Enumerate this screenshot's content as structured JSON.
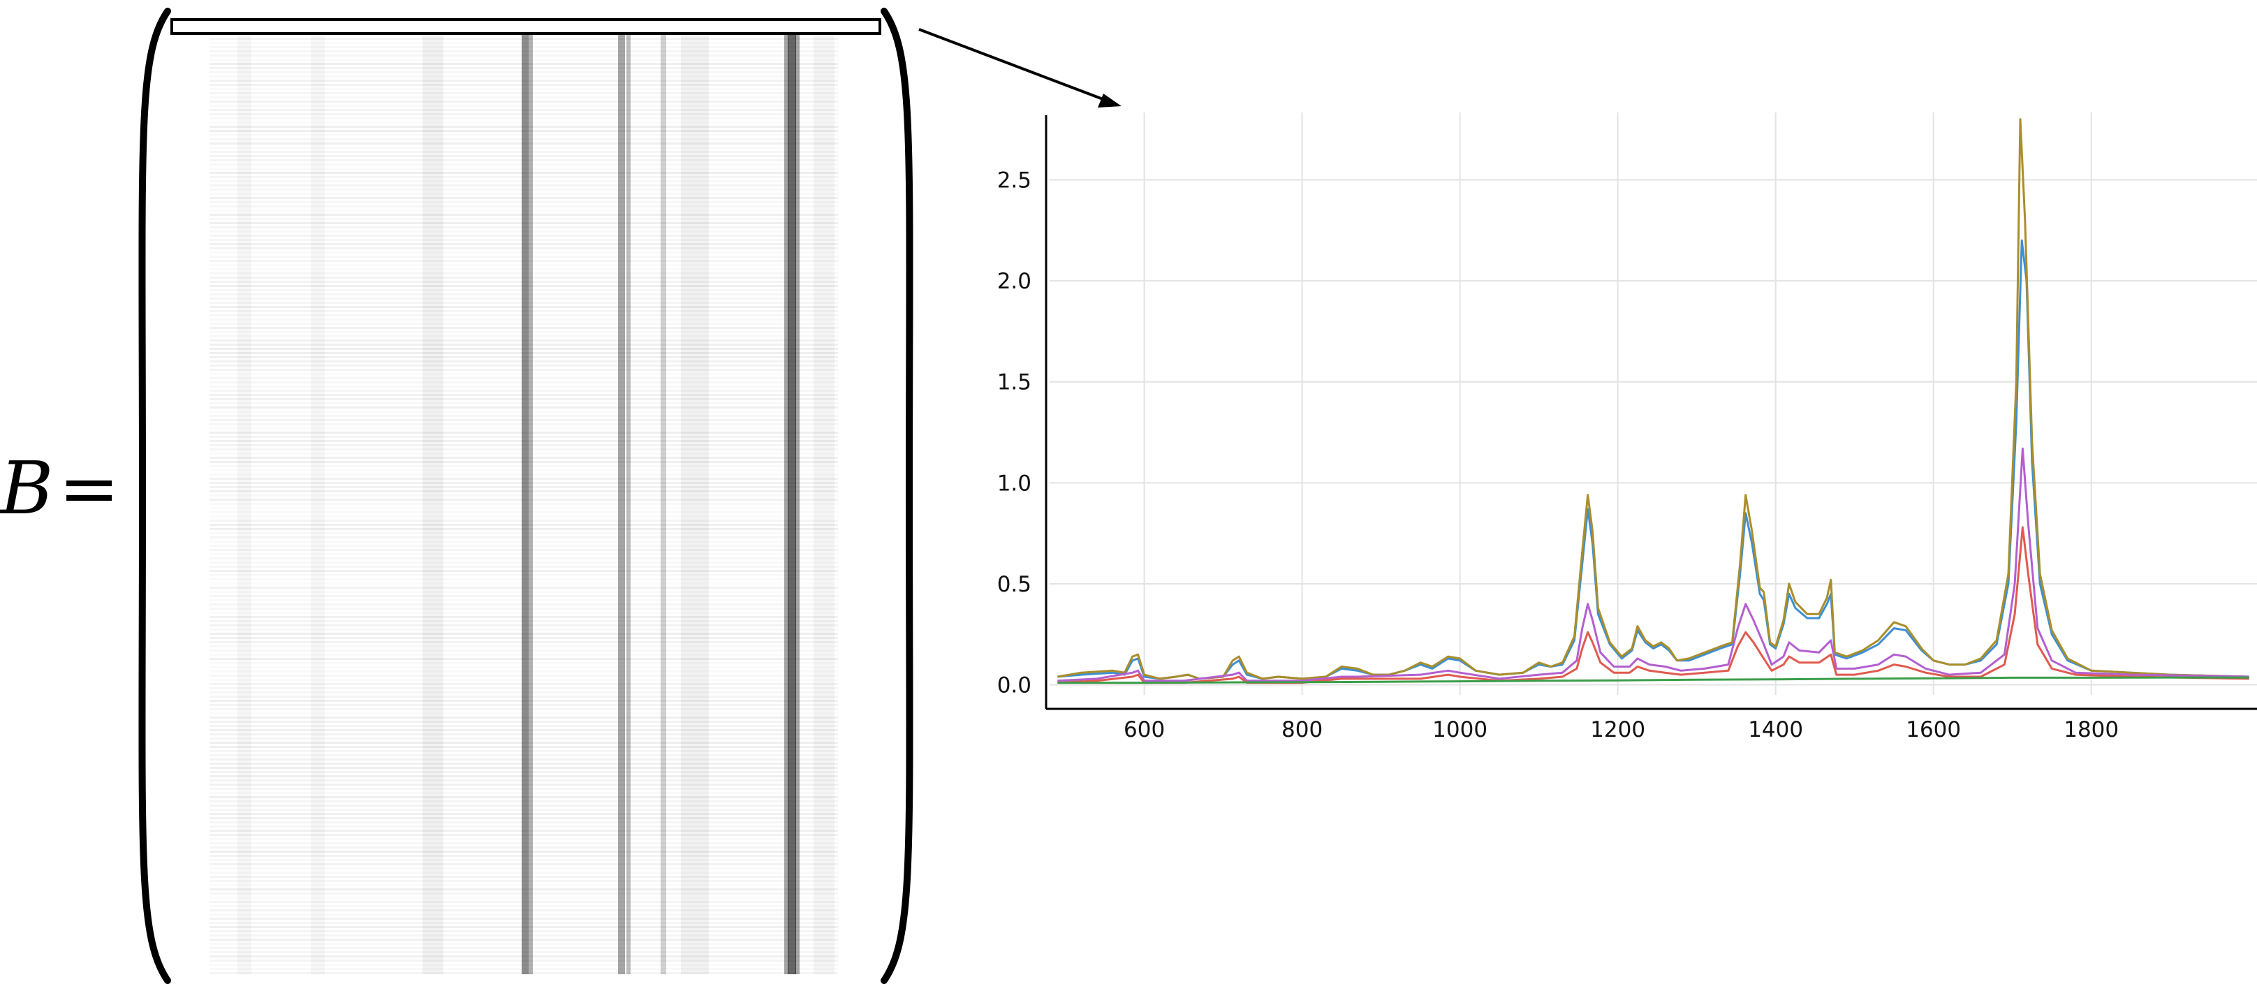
{
  "equation": {
    "symbol": "B",
    "equals": "="
  },
  "arrow": {
    "name": "zoom-arrow"
  },
  "chart_data": {
    "type": "line",
    "title": "",
    "xlabel": "",
    "ylabel": "",
    "xlim": [
      480,
      2010
    ],
    "ylim": [
      -0.05,
      2.82
    ],
    "grid": true,
    "legend": "none",
    "xticks": [
      600,
      800,
      1000,
      1200,
      1400,
      1600,
      1800
    ],
    "yticks": [
      0.0,
      0.5,
      1.0,
      1.5,
      2.0,
      2.5
    ],
    "xtick_labels": [
      "600",
      "800",
      "1000",
      "1200",
      "1400",
      "1600",
      "1800"
    ],
    "ytick_labels": [
      "0.0",
      "0.5",
      "1.0",
      "1.5",
      "2.0",
      "2.5"
    ],
    "series": [
      {
        "color": "#3d8fd4",
        "points": [
          [
            490,
            0.04
          ],
          [
            520,
            0.05
          ],
          [
            560,
            0.06
          ],
          [
            575,
            0.05
          ],
          [
            585,
            0.12
          ],
          [
            592,
            0.13
          ],
          [
            600,
            0.04
          ],
          [
            620,
            0.03
          ],
          [
            640,
            0.04
          ],
          [
            655,
            0.05
          ],
          [
            670,
            0.03
          ],
          [
            700,
            0.04
          ],
          [
            712,
            0.1
          ],
          [
            720,
            0.12
          ],
          [
            730,
            0.05
          ],
          [
            750,
            0.03
          ],
          [
            770,
            0.04
          ],
          [
            800,
            0.03
          ],
          [
            830,
            0.04
          ],
          [
            850,
            0.08
          ],
          [
            870,
            0.07
          ],
          [
            890,
            0.05
          ],
          [
            910,
            0.05
          ],
          [
            930,
            0.07
          ],
          [
            950,
            0.1
          ],
          [
            965,
            0.08
          ],
          [
            985,
            0.13
          ],
          [
            1000,
            0.12
          ],
          [
            1020,
            0.07
          ],
          [
            1050,
            0.05
          ],
          [
            1080,
            0.06
          ],
          [
            1100,
            0.1
          ],
          [
            1115,
            0.09
          ],
          [
            1130,
            0.1
          ],
          [
            1145,
            0.22
          ],
          [
            1155,
            0.6
          ],
          [
            1162,
            0.87
          ],
          [
            1168,
            0.7
          ],
          [
            1175,
            0.35
          ],
          [
            1190,
            0.2
          ],
          [
            1205,
            0.13
          ],
          [
            1218,
            0.17
          ],
          [
            1225,
            0.27
          ],
          [
            1235,
            0.21
          ],
          [
            1245,
            0.18
          ],
          [
            1255,
            0.2
          ],
          [
            1265,
            0.17
          ],
          [
            1275,
            0.12
          ],
          [
            1290,
            0.12
          ],
          [
            1310,
            0.15
          ],
          [
            1330,
            0.18
          ],
          [
            1345,
            0.2
          ],
          [
            1355,
            0.55
          ],
          [
            1362,
            0.85
          ],
          [
            1370,
            0.7
          ],
          [
            1380,
            0.45
          ],
          [
            1385,
            0.42
          ],
          [
            1393,
            0.2
          ],
          [
            1400,
            0.18
          ],
          [
            1410,
            0.3
          ],
          [
            1417,
            0.45
          ],
          [
            1425,
            0.38
          ],
          [
            1440,
            0.33
          ],
          [
            1455,
            0.33
          ],
          [
            1465,
            0.4
          ],
          [
            1470,
            0.45
          ],
          [
            1475,
            0.15
          ],
          [
            1490,
            0.13
          ],
          [
            1510,
            0.16
          ],
          [
            1530,
            0.2
          ],
          [
            1550,
            0.28
          ],
          [
            1565,
            0.27
          ],
          [
            1585,
            0.17
          ],
          [
            1600,
            0.12
          ],
          [
            1620,
            0.1
          ],
          [
            1640,
            0.1
          ],
          [
            1660,
            0.12
          ],
          [
            1680,
            0.2
          ],
          [
            1695,
            0.5
          ],
          [
            1705,
            1.3
          ],
          [
            1712,
            2.2
          ],
          [
            1718,
            2.0
          ],
          [
            1725,
            1.1
          ],
          [
            1735,
            0.5
          ],
          [
            1750,
            0.25
          ],
          [
            1770,
            0.12
          ],
          [
            1800,
            0.07
          ],
          [
            1850,
            0.06
          ],
          [
            1900,
            0.05
          ],
          [
            2000,
            0.04
          ]
        ]
      },
      {
        "color": "#a98e2a",
        "points": [
          [
            490,
            0.04
          ],
          [
            520,
            0.06
          ],
          [
            560,
            0.07
          ],
          [
            575,
            0.06
          ],
          [
            585,
            0.14
          ],
          [
            592,
            0.15
          ],
          [
            600,
            0.05
          ],
          [
            620,
            0.03
          ],
          [
            640,
            0.04
          ],
          [
            655,
            0.05
          ],
          [
            670,
            0.03
          ],
          [
            700,
            0.04
          ],
          [
            712,
            0.12
          ],
          [
            720,
            0.14
          ],
          [
            730,
            0.06
          ],
          [
            750,
            0.03
          ],
          [
            770,
            0.04
          ],
          [
            800,
            0.03
          ],
          [
            830,
            0.04
          ],
          [
            850,
            0.09
          ],
          [
            870,
            0.08
          ],
          [
            890,
            0.05
          ],
          [
            910,
            0.05
          ],
          [
            930,
            0.07
          ],
          [
            950,
            0.11
          ],
          [
            965,
            0.09
          ],
          [
            985,
            0.14
          ],
          [
            1000,
            0.13
          ],
          [
            1020,
            0.07
          ],
          [
            1050,
            0.05
          ],
          [
            1080,
            0.06
          ],
          [
            1100,
            0.11
          ],
          [
            1115,
            0.09
          ],
          [
            1130,
            0.11
          ],
          [
            1145,
            0.24
          ],
          [
            1155,
            0.66
          ],
          [
            1162,
            0.94
          ],
          [
            1168,
            0.76
          ],
          [
            1175,
            0.38
          ],
          [
            1190,
            0.21
          ],
          [
            1205,
            0.14
          ],
          [
            1218,
            0.18
          ],
          [
            1225,
            0.29
          ],
          [
            1235,
            0.22
          ],
          [
            1245,
            0.19
          ],
          [
            1255,
            0.21
          ],
          [
            1265,
            0.18
          ],
          [
            1275,
            0.12
          ],
          [
            1290,
            0.13
          ],
          [
            1310,
            0.16
          ],
          [
            1330,
            0.19
          ],
          [
            1345,
            0.21
          ],
          [
            1355,
            0.6
          ],
          [
            1362,
            0.94
          ],
          [
            1370,
            0.76
          ],
          [
            1380,
            0.48
          ],
          [
            1385,
            0.46
          ],
          [
            1393,
            0.21
          ],
          [
            1400,
            0.19
          ],
          [
            1410,
            0.32
          ],
          [
            1417,
            0.5
          ],
          [
            1425,
            0.41
          ],
          [
            1440,
            0.35
          ],
          [
            1455,
            0.35
          ],
          [
            1465,
            0.43
          ],
          [
            1470,
            0.52
          ],
          [
            1475,
            0.16
          ],
          [
            1490,
            0.14
          ],
          [
            1510,
            0.17
          ],
          [
            1530,
            0.22
          ],
          [
            1550,
            0.31
          ],
          [
            1565,
            0.29
          ],
          [
            1585,
            0.18
          ],
          [
            1600,
            0.12
          ],
          [
            1620,
            0.1
          ],
          [
            1640,
            0.1
          ],
          [
            1660,
            0.13
          ],
          [
            1680,
            0.22
          ],
          [
            1695,
            0.55
          ],
          [
            1705,
            1.5
          ],
          [
            1710,
            2.8
          ],
          [
            1716,
            2.3
          ],
          [
            1725,
            1.2
          ],
          [
            1735,
            0.55
          ],
          [
            1750,
            0.27
          ],
          [
            1770,
            0.13
          ],
          [
            1800,
            0.07
          ],
          [
            1850,
            0.06
          ],
          [
            1900,
            0.05
          ],
          [
            2000,
            0.04
          ]
        ]
      },
      {
        "color": "#b45fd0",
        "points": [
          [
            490,
            0.02
          ],
          [
            540,
            0.03
          ],
          [
            585,
            0.06
          ],
          [
            592,
            0.07
          ],
          [
            600,
            0.02
          ],
          [
            650,
            0.02
          ],
          [
            712,
            0.05
          ],
          [
            720,
            0.06
          ],
          [
            730,
            0.02
          ],
          [
            800,
            0.02
          ],
          [
            850,
            0.04
          ],
          [
            870,
            0.04
          ],
          [
            950,
            0.05
          ],
          [
            985,
            0.07
          ],
          [
            1000,
            0.06
          ],
          [
            1050,
            0.03
          ],
          [
            1100,
            0.05
          ],
          [
            1130,
            0.06
          ],
          [
            1148,
            0.12
          ],
          [
            1155,
            0.28
          ],
          [
            1162,
            0.4
          ],
          [
            1168,
            0.32
          ],
          [
            1178,
            0.16
          ],
          [
            1195,
            0.09
          ],
          [
            1215,
            0.09
          ],
          [
            1225,
            0.13
          ],
          [
            1240,
            0.1
          ],
          [
            1260,
            0.09
          ],
          [
            1280,
            0.07
          ],
          [
            1310,
            0.08
          ],
          [
            1340,
            0.1
          ],
          [
            1352,
            0.28
          ],
          [
            1362,
            0.4
          ],
          [
            1372,
            0.32
          ],
          [
            1385,
            0.2
          ],
          [
            1395,
            0.1
          ],
          [
            1410,
            0.14
          ],
          [
            1417,
            0.21
          ],
          [
            1430,
            0.17
          ],
          [
            1455,
            0.16
          ],
          [
            1470,
            0.22
          ],
          [
            1477,
            0.08
          ],
          [
            1500,
            0.08
          ],
          [
            1530,
            0.1
          ],
          [
            1550,
            0.15
          ],
          [
            1565,
            0.14
          ],
          [
            1590,
            0.08
          ],
          [
            1620,
            0.05
          ],
          [
            1660,
            0.06
          ],
          [
            1690,
            0.15
          ],
          [
            1703,
            0.5
          ],
          [
            1713,
            1.17
          ],
          [
            1720,
            0.8
          ],
          [
            1732,
            0.28
          ],
          [
            1750,
            0.12
          ],
          [
            1780,
            0.06
          ],
          [
            1850,
            0.05
          ],
          [
            2000,
            0.04
          ]
        ]
      },
      {
        "color": "#e05a4f",
        "points": [
          [
            490,
            0.01
          ],
          [
            540,
            0.02
          ],
          [
            585,
            0.04
          ],
          [
            592,
            0.05
          ],
          [
            600,
            0.01
          ],
          [
            650,
            0.01
          ],
          [
            712,
            0.03
          ],
          [
            720,
            0.04
          ],
          [
            730,
            0.01
          ],
          [
            800,
            0.01
          ],
          [
            850,
            0.03
          ],
          [
            870,
            0.03
          ],
          [
            950,
            0.03
          ],
          [
            985,
            0.05
          ],
          [
            1000,
            0.04
          ],
          [
            1050,
            0.02
          ],
          [
            1100,
            0.03
          ],
          [
            1130,
            0.04
          ],
          [
            1148,
            0.08
          ],
          [
            1155,
            0.18
          ],
          [
            1162,
            0.26
          ],
          [
            1168,
            0.21
          ],
          [
            1178,
            0.11
          ],
          [
            1195,
            0.06
          ],
          [
            1215,
            0.06
          ],
          [
            1225,
            0.09
          ],
          [
            1240,
            0.07
          ],
          [
            1260,
            0.06
          ],
          [
            1280,
            0.05
          ],
          [
            1310,
            0.06
          ],
          [
            1340,
            0.07
          ],
          [
            1352,
            0.19
          ],
          [
            1362,
            0.26
          ],
          [
            1372,
            0.21
          ],
          [
            1385,
            0.13
          ],
          [
            1395,
            0.07
          ],
          [
            1410,
            0.1
          ],
          [
            1417,
            0.14
          ],
          [
            1430,
            0.11
          ],
          [
            1455,
            0.11
          ],
          [
            1470,
            0.15
          ],
          [
            1477,
            0.05
          ],
          [
            1500,
            0.05
          ],
          [
            1530,
            0.07
          ],
          [
            1550,
            0.1
          ],
          [
            1565,
            0.09
          ],
          [
            1590,
            0.06
          ],
          [
            1620,
            0.04
          ],
          [
            1660,
            0.04
          ],
          [
            1690,
            0.1
          ],
          [
            1703,
            0.35
          ],
          [
            1713,
            0.78
          ],
          [
            1720,
            0.55
          ],
          [
            1732,
            0.2
          ],
          [
            1750,
            0.08
          ],
          [
            1780,
            0.05
          ],
          [
            1850,
            0.04
          ],
          [
            2000,
            0.03
          ]
        ]
      },
      {
        "color": "#3b9e4a",
        "points": [
          [
            490,
            0.01
          ],
          [
            600,
            0.01
          ],
          [
            700,
            0.012
          ],
          [
            800,
            0.013
          ],
          [
            900,
            0.015
          ],
          [
            1000,
            0.017
          ],
          [
            1100,
            0.02
          ],
          [
            1200,
            0.022
          ],
          [
            1300,
            0.025
          ],
          [
            1400,
            0.027
          ],
          [
            1500,
            0.03
          ],
          [
            1600,
            0.032
          ],
          [
            1700,
            0.035
          ],
          [
            1800,
            0.035
          ],
          [
            1900,
            0.036
          ],
          [
            2000,
            0.036
          ]
        ]
      }
    ]
  }
}
